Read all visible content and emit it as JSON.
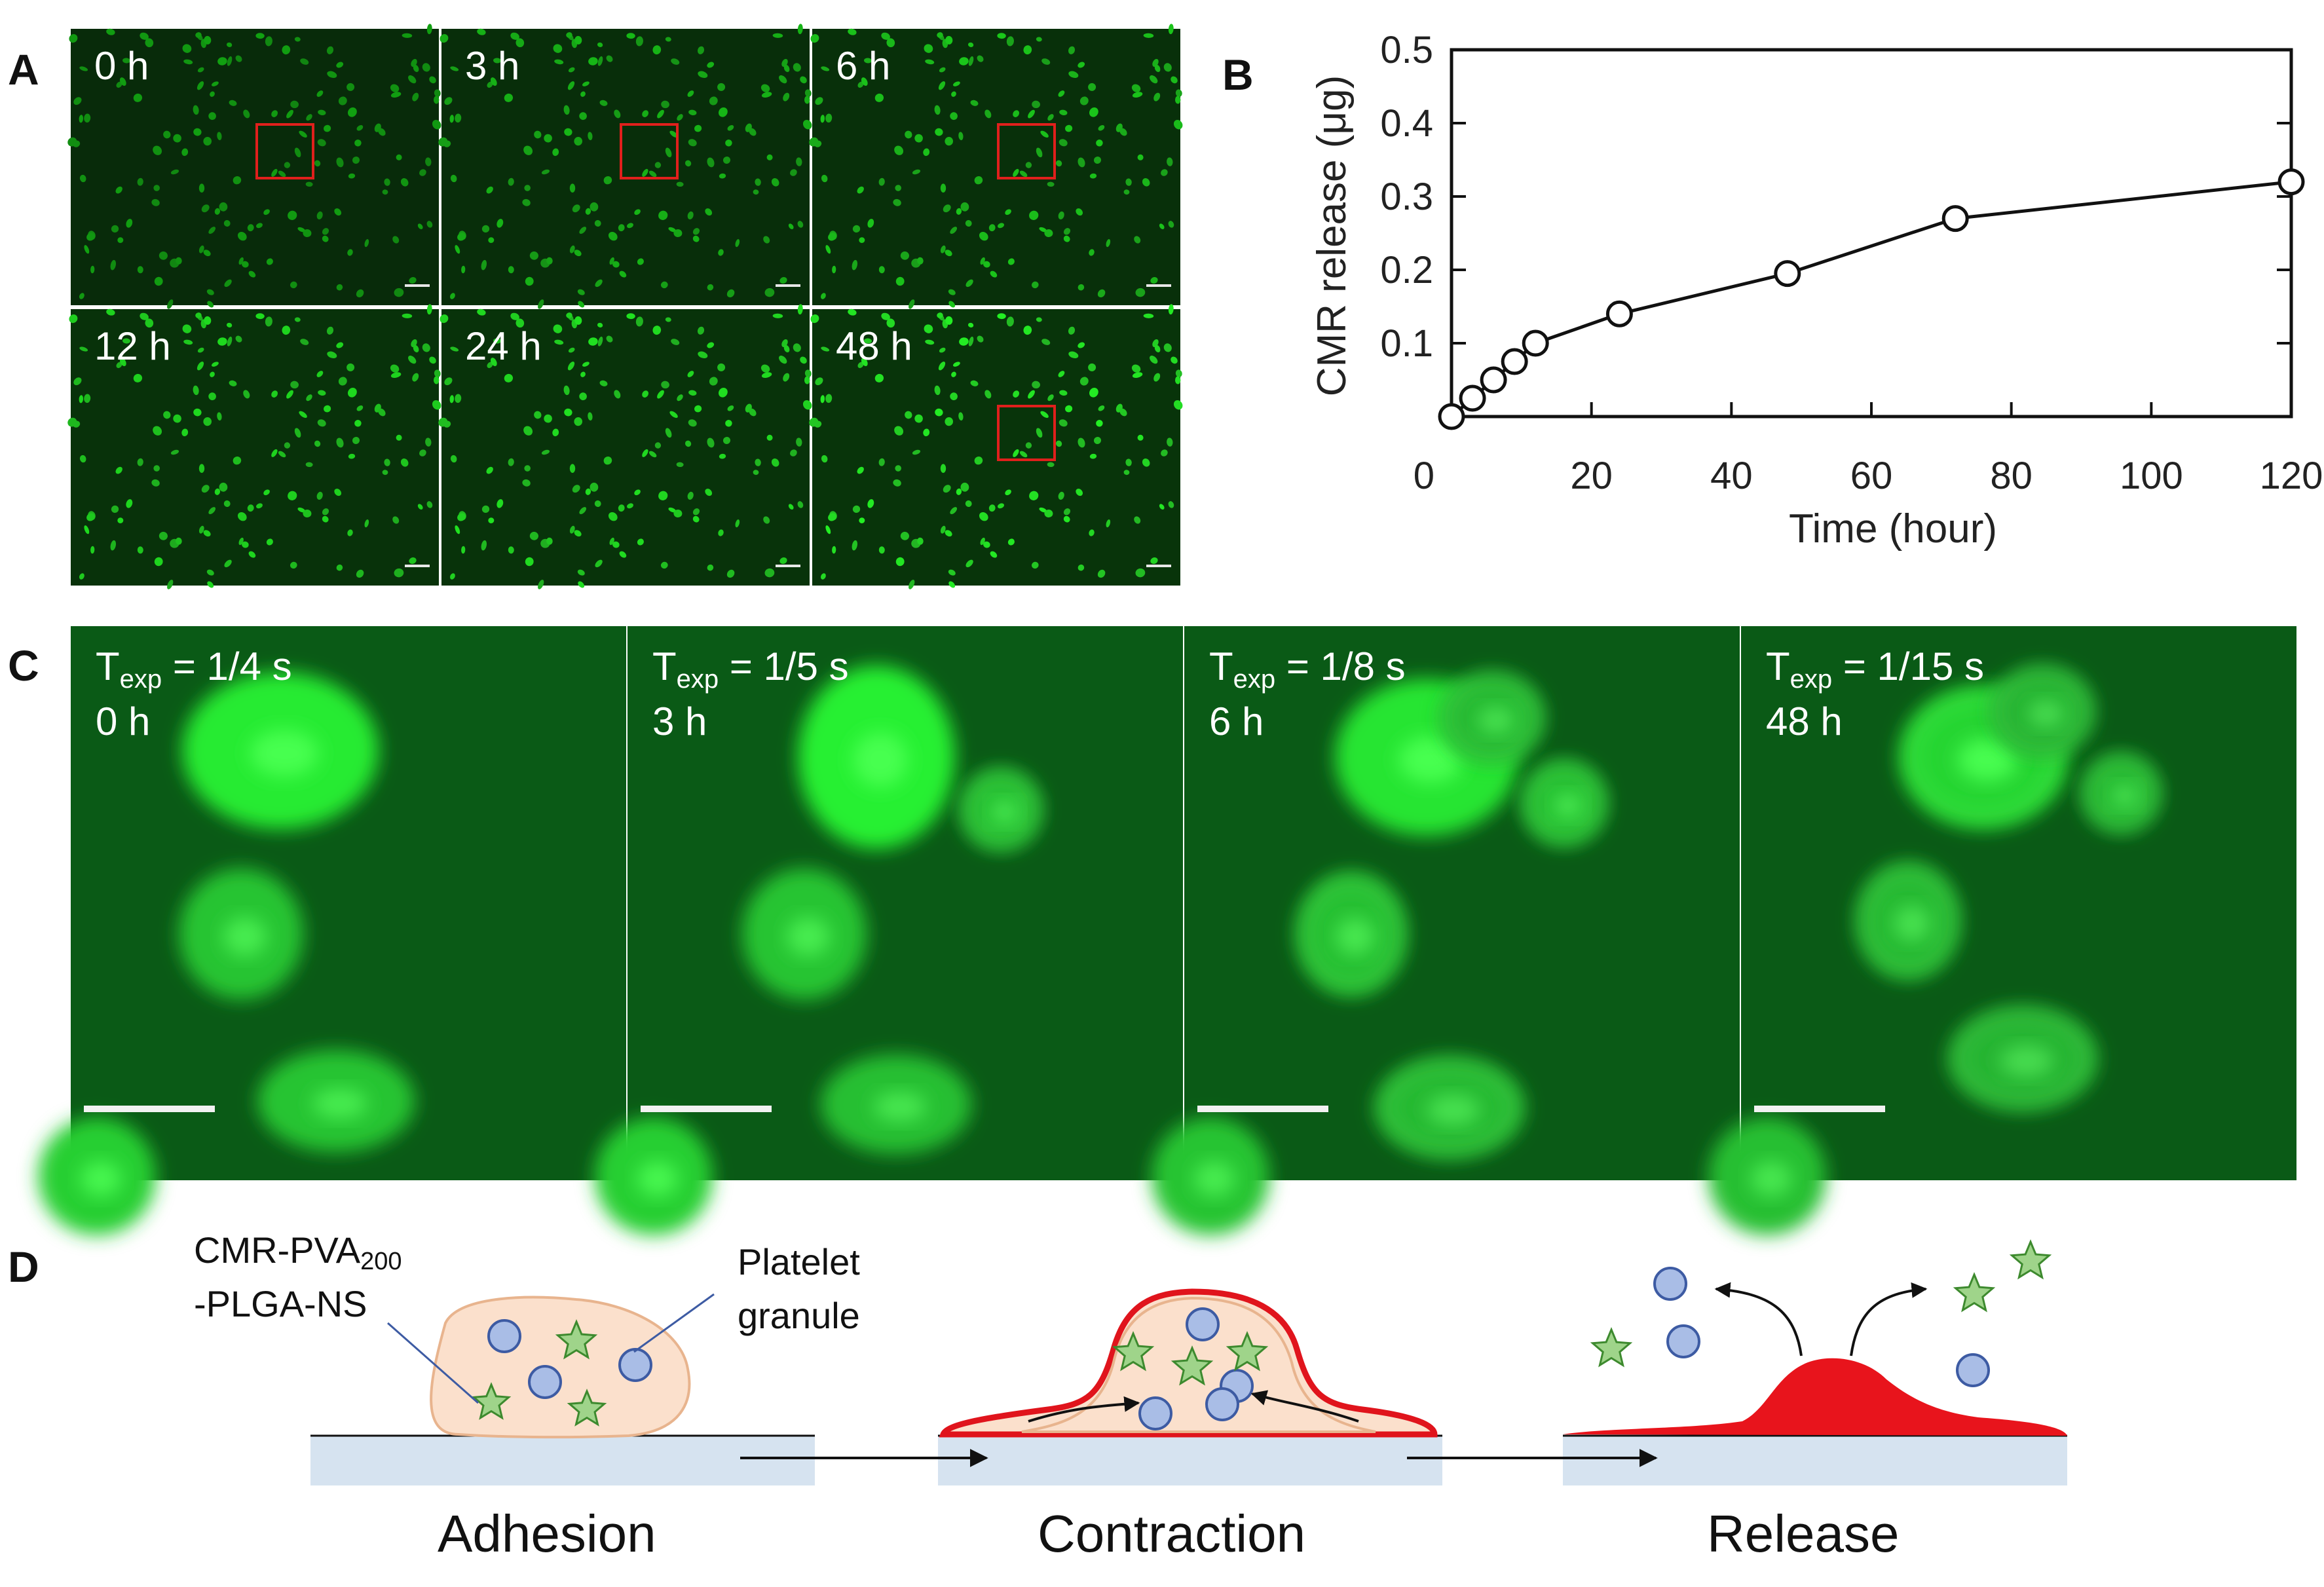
{
  "figure": {
    "panels": {
      "a": "A",
      "b": "B",
      "c": "C",
      "d": "D"
    }
  },
  "panel_a": {
    "tiles": [
      "0 h",
      "3 h",
      "6 h",
      "12 h",
      "24 h",
      "48 h"
    ]
  },
  "panel_c": {
    "tiles": [
      {
        "exp_prefix": "T",
        "exp_sub": "exp",
        "exp_value": " = 1/4 s",
        "time": "0 h"
      },
      {
        "exp_prefix": "T",
        "exp_sub": "exp",
        "exp_value": " = 1/5 s",
        "time": "3 h"
      },
      {
        "exp_prefix": "T",
        "exp_sub": "exp",
        "exp_value": " = 1/8 s",
        "time": "6 h"
      },
      {
        "exp_prefix": "T",
        "exp_sub": "exp",
        "exp_value": " = 1/15 s",
        "time": "48 h"
      }
    ]
  },
  "panel_d": {
    "nanosheet_label_line1": "CMR-PVA",
    "nanosheet_label_sub": "200",
    "nanosheet_label_line2": "-PLGA-NS",
    "granule_label_line1": "Platelet",
    "granule_label_line2": "granule",
    "stages": [
      "Adhesion",
      "Contraction",
      "Release"
    ],
    "colors": {
      "platelet_fill": "#fbe0cc",
      "platelet_edge": "#e8b48e",
      "granule_fill": "#a9bde6",
      "granule_edge": "#3d5ba3",
      "star_fill": "#9fd48a",
      "star_edge": "#3d8a2e",
      "contracted_rim": "#e0141c",
      "substrate": "#d6e3f0"
    }
  },
  "chart_data": {
    "type": "line",
    "title": "",
    "xlabel": "Time (hour)",
    "ylabel": "CMR release (μg)",
    "xlim": [
      0,
      120
    ],
    "ylim": [
      0,
      0.5
    ],
    "x_ticks": [
      0,
      20,
      40,
      60,
      80,
      100,
      120
    ],
    "y_ticks": [
      0.1,
      0.2,
      0.3,
      0.4,
      0.5
    ],
    "y_tick_labels": [
      "0.1",
      "0.2",
      "0.3",
      "0.4",
      "0.5"
    ],
    "x_tick_labels": [
      "0",
      "20",
      "40",
      "60",
      "80",
      "100",
      "120"
    ],
    "series": [
      {
        "x": [
          0,
          3,
          6,
          9,
          12,
          24,
          48,
          72,
          120
        ],
        "y": [
          0.0,
          0.025,
          0.05,
          0.075,
          0.1,
          0.14,
          0.195,
          0.27,
          0.32
        ]
      }
    ],
    "marker": "open-circle",
    "grid": false
  }
}
